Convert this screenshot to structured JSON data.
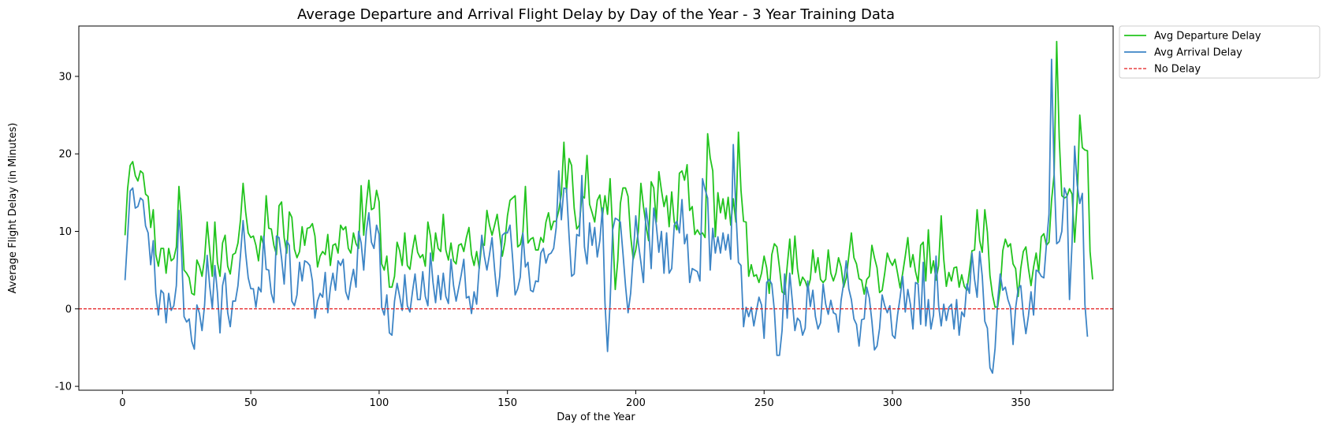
{
  "chart_data": {
    "type": "line",
    "title": "Average Departure and Arrival Flight Delay by Day of the Year - 3 Year Training Data",
    "xlabel": "Day of the Year",
    "ylabel": "Average Flight Delay (in Minutes)",
    "xlim": [
      -17,
      386
    ],
    "ylim": [
      -10.5,
      36.5
    ],
    "xticks": [
      0,
      50,
      100,
      150,
      200,
      250,
      300,
      350
    ],
    "yticks": [
      -10,
      0,
      10,
      20,
      30
    ],
    "grid": false,
    "legend_position": "outside-top-right",
    "x_start": 1,
    "series": [
      {
        "name": "Avg Departure Delay",
        "color": "#22c41e",
        "style": "solid",
        "values": [
          9.5,
          15.5,
          18.5,
          19,
          17.2,
          16.5,
          17.8,
          17.5,
          14.8,
          14.5,
          10.5,
          12.8,
          7,
          5.5,
          7.8,
          7.8,
          4.6,
          7.8,
          6.2,
          6.5,
          8,
          15.8,
          11.5,
          5,
          4.6,
          4,
          2,
          1.8,
          6.3,
          5.5,
          4.2,
          6.5,
          11.2,
          7.5,
          4.2,
          11.2,
          6,
          4.2,
          8.5,
          9.5,
          5.5,
          4.5,
          7,
          7.2,
          8.5,
          11.5,
          16.2,
          12.5,
          9.8,
          9.2,
          9.4,
          8.2,
          6.2,
          9.4,
          8.2,
          14.6,
          10.4,
          10.3,
          8.2,
          7,
          13.3,
          13.8,
          9.2,
          7.2,
          12.5,
          11.8,
          7.7,
          6.6,
          7.4,
          10.6,
          8.2,
          10.4,
          10.5,
          11,
          9.4,
          5.4,
          6.8,
          7.4,
          7,
          9.6,
          5.6,
          8.2,
          8.4,
          7.2,
          10.8,
          10.2,
          10.6,
          7.8,
          7.2,
          9.8,
          8.4,
          7.8,
          15.9,
          9.5,
          13.5,
          16.6,
          12.8,
          13,
          15.3,
          13.8,
          5.8,
          5,
          6.8,
          2.8,
          2.8,
          4.2,
          8.6,
          7.5,
          5.6,
          9.8,
          5.6,
          5.1,
          7.6,
          9.5,
          7.3,
          6.6,
          7,
          5.5,
          11.2,
          9.4,
          6.2,
          9.8,
          7.8,
          7.4,
          12.2,
          7.6,
          6.3,
          8.5,
          6.2,
          5.8,
          8.2,
          8.4,
          7.4,
          9.2,
          10.5,
          7,
          5.6,
          7.4,
          5.2,
          8.5,
          8.2,
          12.7,
          10.8,
          9.5,
          10.8,
          12.2,
          9.6,
          6.8,
          8.6,
          12,
          14,
          14.3,
          14.6,
          8,
          8.3,
          9.8,
          15.8,
          8.5,
          9,
          9.2,
          7.6,
          7.6,
          9.2,
          8.6,
          11.2,
          12.4,
          10.2,
          11.3,
          11.3,
          12.7,
          14.8,
          21.5,
          15,
          19.4,
          18.5,
          13,
          10.3,
          10.8,
          14.6,
          14.3,
          19.8,
          13.5,
          12.4,
          11.2,
          14,
          14.7,
          11.9,
          14.6,
          12.2,
          16.8,
          10,
          2.5,
          6.3,
          13.6,
          15.6,
          15.6,
          14.5,
          9.4,
          6.4,
          7.6,
          10,
          16.2,
          13.2,
          10.8,
          8.8,
          16.4,
          15.6,
          11.2,
          17.7,
          15.3,
          13.2,
          14.6,
          10.6,
          15.1,
          11.2,
          10.2,
          17.5,
          17.8,
          16.6,
          18.6,
          12.7,
          13.2,
          9.6,
          10.2,
          9.6,
          9.8,
          9.2,
          22.6,
          19.5,
          17.8,
          9.3,
          15,
          12.4,
          14.2,
          11.6,
          14.4,
          10.8,
          14.2,
          11.2,
          22.8,
          15.3,
          11.3,
          11.2,
          4.2,
          5.7,
          4.2,
          4.4,
          3.4,
          4.6,
          6.8,
          5.3,
          2,
          7,
          8.4,
          8,
          5.3,
          2.2,
          1.9,
          5.5,
          9,
          4.5,
          9.4,
          5.2,
          3,
          4.1,
          3.6,
          2.6,
          3.8,
          7.6,
          4.7,
          6.6,
          3.8,
          3.4,
          3.8,
          7.6,
          4.6,
          3.6,
          4.6,
          6.6,
          5.4,
          2.8,
          4,
          6.8,
          9.8,
          6.6,
          5.8,
          3.9,
          3.7,
          1.9,
          3.8,
          4.2,
          8.2,
          6.6,
          5.3,
          2.1,
          2.4,
          4.6,
          7.2,
          6.2,
          5.6,
          6.4,
          4.6,
          2.7,
          4.6,
          6.8,
          9.2,
          5.4,
          7,
          4.8,
          3.4,
          8.2,
          8.6,
          3.6,
          10.2,
          4.6,
          6.2,
          3.7,
          5.6,
          12,
          6.4,
          2.9,
          4.7,
          3.6,
          5.3,
          5.4,
          2.8,
          4.4,
          2.9,
          2.4,
          4.9,
          7.5,
          7.6,
          12.8,
          8.8,
          7.3,
          12.8,
          9.9,
          4.3,
          1.8,
          0.2,
          0.3,
          2.6,
          7.5,
          9,
          8,
          8.4,
          5.8,
          5.2,
          1.6,
          5.2,
          7.4,
          8,
          5.2,
          3,
          5.4,
          7.2,
          4.7,
          9.3,
          9.7,
          8.2,
          8.6,
          14,
          17.3,
          34.5,
          22,
          14.6,
          14.3,
          14.5,
          15.5,
          14.8,
          8.6,
          14,
          25,
          20.8,
          20.5,
          20.4,
          7.4,
          3.8
        ]
      },
      {
        "name": "Avg Arrival Delay",
        "color": "#3d85c6",
        "style": "solid",
        "values": [
          3.7,
          9.3,
          15.2,
          15.6,
          13,
          13.2,
          14.3,
          14,
          10.7,
          9.8,
          5.7,
          8.8,
          2,
          -0.8,
          2.4,
          2,
          -1.8,
          2,
          -0.2,
          0.4,
          3,
          12.7,
          7.5,
          -1,
          -1.7,
          -1.3,
          -4.2,
          -5.2,
          0.5,
          -0.6,
          -2.8,
          0.5,
          6.9,
          2.9,
          0.1,
          5.6,
          2.1,
          -3.1,
          3,
          4.6,
          -0.5,
          -2.3,
          1,
          1,
          3,
          7,
          11.4,
          7.2,
          4,
          2.6,
          2.6,
          0.2,
          2.8,
          2.2,
          9.4,
          5.1,
          5,
          2,
          0.8,
          9.4,
          9.2,
          6.5,
          3.2,
          8.8,
          8.2,
          1,
          0.4,
          1.8,
          6,
          3.6,
          6.2,
          6,
          5.6,
          3.6,
          -1.2,
          1,
          2,
          1.5,
          4.7,
          -0.5,
          2.7,
          4.6,
          2.4,
          6.2,
          5.6,
          6.4,
          2.2,
          1.2,
          3.4,
          5.1,
          2.8,
          10,
          8.5,
          5,
          10,
          12.4,
          8.6,
          7.8,
          10.8,
          9.6,
          0.2,
          -0.8,
          1.8,
          -3.1,
          -3.4,
          1,
          3.3,
          1.6,
          -0.2,
          4.4,
          0.4,
          -0.4,
          2.2,
          4.5,
          1.2,
          1.2,
          4.8,
          1.6,
          0.4,
          7.2,
          3.4,
          0.8,
          4.3,
          1.2,
          4.6,
          1.6,
          0.7,
          6.4,
          3,
          1,
          2.7,
          4.4,
          6.4,
          1.4,
          1.6,
          -0.6,
          2.2,
          0.6,
          5.4,
          9.5,
          6.8,
          5,
          7,
          9.2,
          5.1,
          1.6,
          4.2,
          9.5,
          9.8,
          9.8,
          10.8,
          6.6,
          1.8,
          2.6,
          4.1,
          9.8,
          5.4,
          6,
          2.4,
          2.2,
          3.6,
          3.5,
          7.2,
          7.8,
          5.9,
          7,
          7.2,
          7.8,
          10.5,
          17.8,
          11.5,
          15.6,
          15.5,
          9.5,
          4.2,
          4.5,
          9.6,
          9.4,
          17.2,
          8,
          5.8,
          11.1,
          8.2,
          10.5,
          6.7,
          8.8,
          13,
          0.8,
          -5.5,
          0.8,
          10.2,
          11.7,
          11.5,
          11.2,
          7.2,
          3,
          -0.5,
          2,
          6.8,
          12,
          8.5,
          6,
          3.4,
          13,
          10.5,
          5.2,
          13,
          10.8,
          7.3,
          10,
          4.6,
          9.8,
          4.6,
          5.2,
          10.8,
          11.3,
          9.8,
          14.1,
          8.4,
          9.6,
          3.4,
          5.2,
          5,
          4.8,
          3.6,
          16.8,
          15.4,
          14.3,
          5,
          10.4,
          7.2,
          9.3,
          7.2,
          9.8,
          7.6,
          9.6,
          6.4,
          21.2,
          12.7,
          6,
          5.6,
          -2.3,
          0.2,
          -1,
          0.2,
          -2.2,
          -0.3,
          1.5,
          0.5,
          -3.8,
          3.4,
          3.8,
          3.2,
          -0.2,
          -6,
          -6,
          -2.8,
          4.5,
          -1.2,
          4.6,
          1,
          -2.8,
          -1.2,
          -1.6,
          -3.4,
          -2.5,
          3.6,
          0.3,
          2.4,
          -1,
          -2.6,
          -1.8,
          3.2,
          0.6,
          -0.7,
          1.1,
          -0.5,
          -0.7,
          -3,
          1.1,
          3.3,
          6.2,
          2.6,
          1.2,
          -1.3,
          -2,
          -4.8,
          -1.4,
          -1.3,
          2.8,
          1.4,
          -1.6,
          -5.3,
          -4.8,
          -2.5,
          1.8,
          0.4,
          -0.5,
          0.4,
          -3.4,
          -3.8,
          -0.8,
          1.5,
          4.2,
          -0.4,
          2.5,
          0.6,
          -2.6,
          3.4,
          3.2,
          -2,
          6,
          -2.2,
          1.2,
          -2.6,
          -0.8,
          6.8,
          0.4,
          -2.2,
          0.6,
          -1.5,
          0.2,
          0.6,
          -2.6,
          1.2,
          -3.4,
          -0.4,
          -1,
          3.2,
          2,
          7.2,
          3.8,
          1.5,
          7.4,
          4.2,
          -1.6,
          -2.5,
          -7.6,
          -8.3,
          -5.1,
          1,
          4.5,
          2.4,
          2.8,
          1.2,
          0.2,
          -4.6,
          0.1,
          2.6,
          3,
          -0.7,
          -3.2,
          -0.9,
          2.2,
          -0.8,
          5,
          4.8,
          4.2,
          4,
          8.3,
          12.2,
          32.2,
          17.6,
          8.4,
          8.7,
          10,
          15.6,
          14.6,
          1.2,
          8.6,
          21,
          16,
          13.6,
          14.9,
          0.6,
          -3.6
        ]
      },
      {
        "name": "No Delay",
        "color": "#e41a1c",
        "style": "dashed",
        "constant_y": 0
      }
    ]
  }
}
